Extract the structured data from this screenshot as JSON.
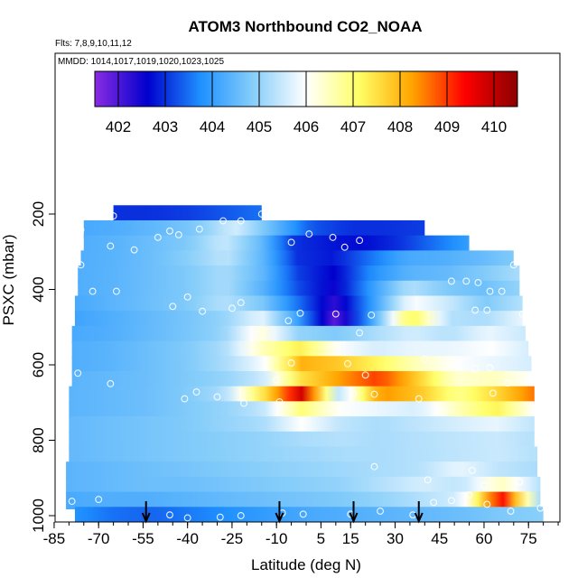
{
  "chart_data": {
    "type": "heatmap",
    "title": "ATOM3 Northbound CO2_NOAA",
    "subtitle_flights": "Flts: 7,8,9,10,11,12",
    "subtitle_dates": "MMDD: 1014,1017,1019,1020,1023,1025",
    "xlabel": "Latitude (deg N)",
    "ylabel": "PSXC (mbar)",
    "xlim": [
      -85,
      85
    ],
    "ylim": [
      1000,
      100
    ],
    "x_ticks": [
      "-85",
      "-70",
      "-55",
      "-40",
      "-25",
      "-10",
      "5",
      "15",
      "30",
      "45",
      "60",
      "75"
    ],
    "y_ticks": [
      "200",
      "400",
      "600",
      "800",
      "1000"
    ],
    "colorbar": {
      "ticks": [
        "402",
        "403",
        "404",
        "405",
        "406",
        "407",
        "408",
        "409",
        "410"
      ],
      "range": [
        401.5,
        410.5
      ],
      "colors": [
        "#8a2be2",
        "#0000cd",
        "#1e90ff",
        "#87cefa",
        "#ffffff",
        "#ffff66",
        "#ffa500",
        "#ff0000",
        "#8b0000"
      ]
    },
    "arrows_latitude": [
      -54,
      -9,
      16,
      38
    ],
    "layers": [
      {
        "p": 200,
        "lat": [
          -65,
          -15
        ],
        "v": [
          403.0,
          403.0,
          403.1,
          403.3,
          403.5
        ]
      },
      {
        "p": 240,
        "lat": [
          -75,
          40
        ],
        "v": [
          404.2,
          404.3,
          404.5,
          404.8,
          405.6,
          404.5,
          403.3,
          403.0,
          403.0,
          403.1
        ]
      },
      {
        "p": 280,
        "lat": [
          -75,
          55
        ],
        "v": [
          404.3,
          404.4,
          404.6,
          404.8,
          405.5,
          404.6,
          403.0,
          402.8,
          402.7,
          403.0,
          403.5,
          404.0
        ]
      },
      {
        "p": 320,
        "lat": [
          -76,
          70
        ],
        "v": [
          404.3,
          404.4,
          404.6,
          404.9,
          405.4,
          404.5,
          403.0,
          402.8,
          403.5,
          404.2,
          404.3,
          404.5,
          404.8
        ]
      },
      {
        "p": 360,
        "lat": [
          -77,
          72
        ],
        "v": [
          404.3,
          404.4,
          404.6,
          404.8,
          405.2,
          404.5,
          403.1,
          402.6,
          403.8,
          404.4,
          404.5,
          404.8,
          405.2
        ]
      },
      {
        "p": 400,
        "lat": [
          -77,
          72
        ],
        "v": [
          404.3,
          404.4,
          404.6,
          404.8,
          405.2,
          404.4,
          403.2,
          402.5,
          404.0,
          405.3,
          404.8,
          404.6,
          405.0
        ]
      },
      {
        "p": 440,
        "lat": [
          -78,
          73
        ],
        "v": [
          404.2,
          404.4,
          404.6,
          404.8,
          405.3,
          404.8,
          403.5,
          402.2,
          404.0,
          406.0,
          405.5,
          404.8,
          405.3
        ]
      },
      {
        "p": 480,
        "lat": [
          -78,
          73
        ],
        "v": [
          404.1,
          404.3,
          404.5,
          404.7,
          405.0,
          405.8,
          404.0,
          401.8,
          404.2,
          407.4,
          405.3,
          405.2,
          405.8
        ]
      },
      {
        "p": 520,
        "lat": [
          -79,
          74
        ],
        "v": [
          404.2,
          404.3,
          404.5,
          404.7,
          405.0,
          406.3,
          405.0,
          404.8,
          405.2,
          405.6,
          405.3,
          405.8,
          405.5
        ]
      },
      {
        "p": 560,
        "lat": [
          -79,
          75
        ],
        "v": [
          404.3,
          404.4,
          404.6,
          404.8,
          405.2,
          406.5,
          407.3,
          406.0,
          405.6,
          405.8,
          405.8,
          406.0,
          405.6
        ]
      },
      {
        "p": 600,
        "lat": [
          -79,
          76
        ],
        "v": [
          404.3,
          404.4,
          404.6,
          404.8,
          405.2,
          405.9,
          408.1,
          407.8,
          407.2,
          406.5,
          406.0,
          405.8,
          405.6
        ]
      },
      {
        "p": 640,
        "lat": [
          -79,
          76
        ],
        "v": [
          404.4,
          404.5,
          404.6,
          404.8,
          405.0,
          405.5,
          407.5,
          408.3,
          409.0,
          407.8,
          406.3,
          406.5,
          406.0
        ]
      },
      {
        "p": 680,
        "lat": [
          -80,
          77
        ],
        "v": [
          404.4,
          404.5,
          404.6,
          404.8,
          405.2,
          407.4,
          409.8,
          405.2,
          408.4,
          407.9,
          406.8,
          407.6,
          408.6
        ]
      },
      {
        "p": 720,
        "lat": [
          -80,
          77
        ],
        "v": [
          404.4,
          404.5,
          404.6,
          404.8,
          405.0,
          405.4,
          407.0,
          406.0,
          405.8,
          405.6,
          406.5,
          407.3,
          406.0
        ]
      },
      {
        "p": 760,
        "lat": [
          -80,
          77
        ],
        "v": [
          404.5,
          404.6,
          404.7,
          404.8,
          405.0,
          405.2,
          406.0,
          405.4,
          405.2,
          405.4,
          405.6,
          405.8,
          405.4
        ]
      },
      {
        "p": 800,
        "lat": [
          -80,
          77
        ],
        "v": [
          404.5,
          404.6,
          404.7,
          404.8,
          404.9,
          405.0,
          405.2,
          405.3,
          405.2,
          405.3,
          405.4,
          405.5,
          405.3
        ]
      },
      {
        "p": 840,
        "lat": [
          -80,
          78
        ],
        "v": [
          404.5,
          404.6,
          404.7,
          404.8,
          404.9,
          405.0,
          405.1,
          405.2,
          405.2,
          405.3,
          405.4,
          405.5,
          405.3
        ]
      },
      {
        "p": 880,
        "lat": [
          -81,
          78
        ],
        "v": [
          404.4,
          404.5,
          404.6,
          404.7,
          404.8,
          404.9,
          405.0,
          405.1,
          405.2,
          405.3,
          405.8,
          405.4,
          405.2
        ]
      },
      {
        "p": 920,
        "lat": [
          -81,
          79
        ],
        "v": [
          404.4,
          404.5,
          404.6,
          404.6,
          404.7,
          404.8,
          404.9,
          405.0,
          405.3,
          405.6,
          405.4,
          406.5,
          405.3
        ]
      },
      {
        "p": 960,
        "lat": [
          -81,
          79
        ],
        "v": [
          404.2,
          404.3,
          404.3,
          404.4,
          404.5,
          404.6,
          404.7,
          404.8,
          405.0,
          405.3,
          405.6,
          409.5,
          405.2
        ]
      },
      {
        "p": 1000,
        "lat": [
          -78,
          80
        ],
        "v": [
          403.8,
          403.5,
          403.4,
          403.6,
          403.8,
          404.0,
          404.2,
          404.3,
          404.4,
          404.5,
          404.6,
          404.8,
          404.9
        ]
      }
    ],
    "samples": [
      [
        -65,
        205
      ],
      [
        -76,
        242
      ],
      [
        -43,
        255
      ],
      [
        -46,
        245
      ],
      [
        -36,
        240
      ],
      [
        -28,
        218
      ],
      [
        -22,
        218
      ],
      [
        -15,
        200
      ],
      [
        -66,
        285
      ],
      [
        -58,
        295
      ],
      [
        -50,
        262
      ],
      [
        -5,
        275
      ],
      [
        1,
        253
      ],
      [
        13,
        288
      ],
      [
        18,
        270
      ],
      [
        9,
        262
      ],
      [
        -76,
        335
      ],
      [
        -72,
        405
      ],
      [
        -64,
        405
      ],
      [
        -45,
        445
      ],
      [
        -40,
        420
      ],
      [
        -35,
        458
      ],
      [
        -25,
        450
      ],
      [
        -2,
        463
      ],
      [
        -6,
        483
      ],
      [
        10,
        465
      ],
      [
        18,
        515
      ],
      [
        22,
        468
      ],
      [
        49,
        378
      ],
      [
        54,
        378
      ],
      [
        58,
        382
      ],
      [
        62,
        405
      ],
      [
        66,
        405
      ],
      [
        70,
        335
      ],
      [
        57,
        455
      ],
      [
        61,
        455
      ],
      [
        73,
        465
      ],
      [
        -10,
        640
      ],
      [
        -5,
        595
      ],
      [
        -77,
        622
      ],
      [
        -66,
        650
      ],
      [
        -41,
        690
      ],
      [
        -37,
        672
      ],
      [
        -30,
        685
      ],
      [
        -21,
        702
      ],
      [
        -9,
        698
      ],
      [
        14,
        597
      ],
      [
        20,
        627
      ],
      [
        -22,
        435
      ],
      [
        40,
        585
      ],
      [
        57,
        610
      ],
      [
        62,
        608
      ],
      [
        63,
        675
      ],
      [
        68,
        648
      ],
      [
        23,
        678
      ],
      [
        38,
        690
      ],
      [
        46,
        725
      ],
      [
        16,
        678
      ],
      [
        -79,
        962
      ],
      [
        -70,
        957
      ],
      [
        -46,
        998
      ],
      [
        -40,
        1006
      ],
      [
        -29,
        1004
      ],
      [
        -22,
        1000
      ],
      [
        -8,
        993
      ],
      [
        -1,
        996
      ],
      [
        15,
        996
      ],
      [
        25,
        988
      ],
      [
        36,
        998
      ],
      [
        43,
        965
      ],
      [
        49,
        960
      ],
      [
        55,
        945
      ],
      [
        61,
        970
      ],
      [
        69,
        988
      ],
      [
        79,
        980
      ],
      [
        41,
        905
      ],
      [
        56,
        880
      ],
      [
        60,
        920
      ],
      [
        72,
        910
      ],
      [
        23,
        870
      ]
    ]
  }
}
